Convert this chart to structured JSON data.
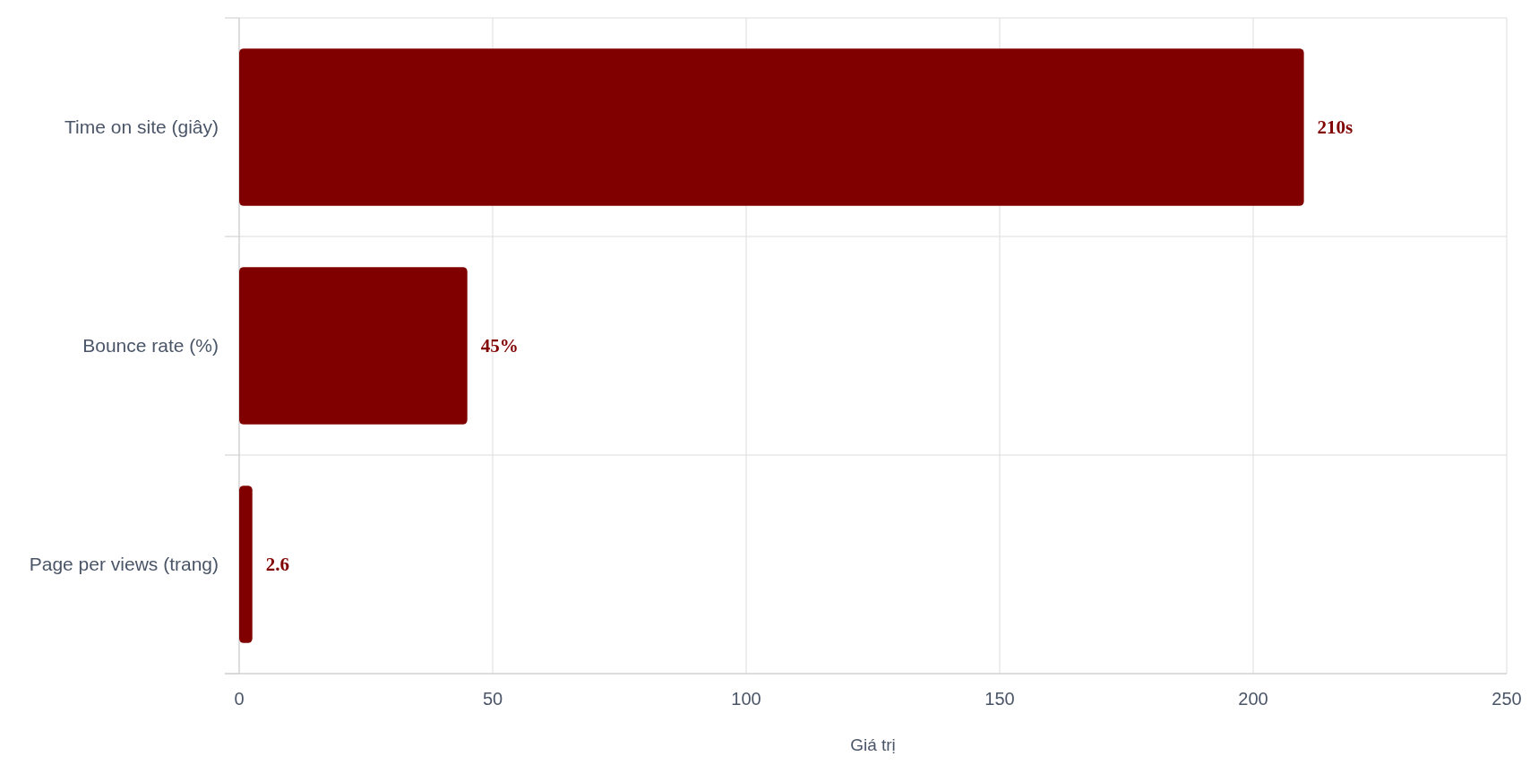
{
  "chart_data": {
    "type": "bar",
    "orientation": "horizontal",
    "xlabel": "Giá trị",
    "categories": [
      "Time on site (giây)",
      "Bounce rate (%)",
      "Page per views (trang)"
    ],
    "values": [
      210,
      45,
      2.6
    ],
    "value_labels": [
      "210s",
      "45%",
      "2.6"
    ],
    "color": "#800000",
    "xlim": [
      0,
      250
    ],
    "xticks": [
      0,
      50,
      100,
      150,
      200,
      250
    ],
    "grid": true
  }
}
